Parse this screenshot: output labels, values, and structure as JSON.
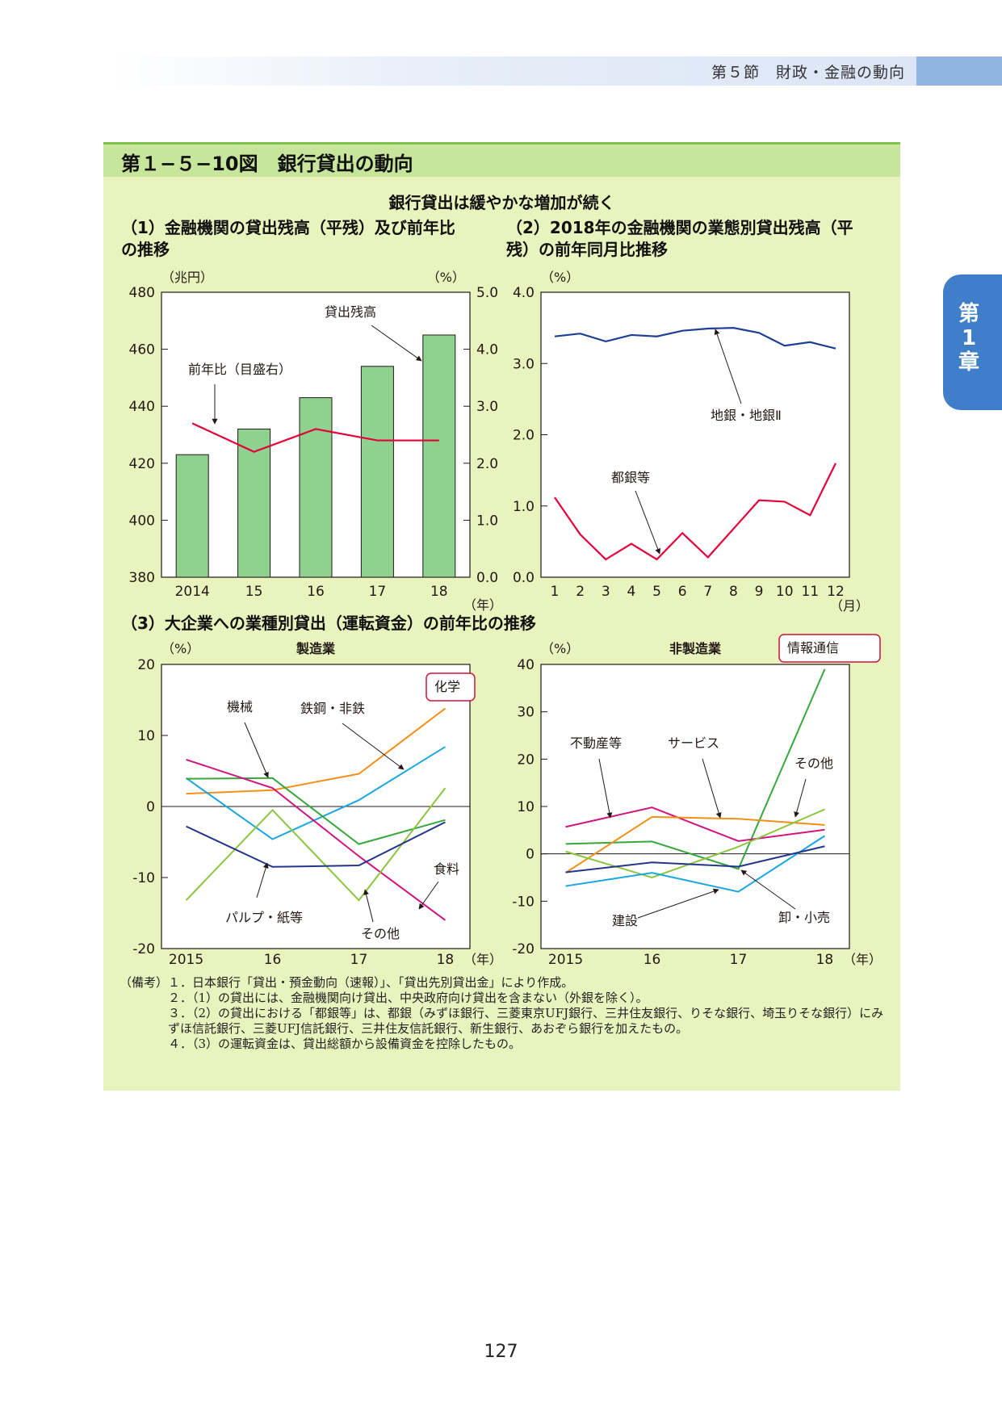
{
  "header": {
    "section": "第５節　財政・金融の動向",
    "side_tab": "第1章"
  },
  "figure": {
    "title": "第１−５−10図　銀行貸出の動向",
    "subtitle": "銀行貸出は緩やかな増加が続く"
  },
  "sections": {
    "s1": "（1）金融機関の貸出残高（平残）及び前年比の推移",
    "s2": "（2）2018年の金融機関の業態別貸出残高（平残）の前年同月比推移",
    "s3": "（3）大企業への業種別貸出（運転資金）の前年比の推移"
  },
  "chart_data": [
    {
      "id": "c1",
      "type": "bar",
      "categories": [
        "2014",
        "15",
        "16",
        "17",
        "18"
      ],
      "x_unit": "（年）",
      "y_left_unit": "（兆円）",
      "y_right_unit": "（%）",
      "ylim_left": [
        380,
        480
      ],
      "yticks_left": [
        "380",
        "400",
        "420",
        "440",
        "460",
        "480"
      ],
      "ylim_right": [
        0,
        5
      ],
      "yticks_right": [
        "0.0",
        "1.0",
        "2.0",
        "3.0",
        "4.0",
        "5.0"
      ],
      "series": [
        {
          "name": "貸出残高",
          "type": "bar",
          "axis": "left",
          "values": [
            423,
            432,
            443,
            454,
            465
          ],
          "color": "#8fd18f"
        },
        {
          "name": "前年比（目盛右）",
          "type": "line",
          "axis": "right",
          "values": [
            2.7,
            2.2,
            2.6,
            2.4,
            2.4
          ],
          "color": "#e4003a"
        }
      ]
    },
    {
      "id": "c2",
      "type": "line",
      "x": [
        "1",
        "2",
        "3",
        "4",
        "5",
        "6",
        "7",
        "8",
        "9",
        "10",
        "11",
        "12"
      ],
      "x_unit": "（月）",
      "y_unit": "（%）",
      "ylim": [
        0,
        4
      ],
      "yticks": [
        "0.0",
        "1.0",
        "2.0",
        "3.0",
        "4.0"
      ],
      "series": [
        {
          "name": "地銀・地銀Ⅱ",
          "values": [
            3.38,
            3.42,
            3.31,
            3.4,
            3.38,
            3.46,
            3.49,
            3.5,
            3.43,
            3.25,
            3.3,
            3.21
          ],
          "color": "#1d3f94"
        },
        {
          "name": "都銀等",
          "values": [
            1.12,
            0.6,
            0.25,
            0.47,
            0.25,
            0.62,
            0.28,
            0.68,
            1.08,
            1.06,
            0.87,
            1.6
          ],
          "color": "#e4003a"
        }
      ]
    },
    {
      "id": "c3",
      "title": "製造業",
      "type": "line",
      "x": [
        "2015",
        "16",
        "17",
        "18"
      ],
      "x_unit": "（年）",
      "y_unit": "（%）",
      "ylim": [
        -20,
        20
      ],
      "yticks": [
        "-20",
        "-10",
        "0",
        "10",
        "20"
      ],
      "series": [
        {
          "name": "化学",
          "values": [
            1.8,
            2.3,
            4.6,
            13.8
          ],
          "color": "#f39019"
        },
        {
          "name": "鉄鋼・非鉄",
          "values": [
            4.0,
            -4.6,
            0.9,
            8.4
          ],
          "color": "#1aa6e0"
        },
        {
          "name": "機械",
          "values": [
            3.9,
            4.0,
            -5.3,
            -1.9
          ],
          "color": "#36a83c"
        },
        {
          "name": "食料",
          "values": [
            6.6,
            2.6,
            -7.0,
            -16.0
          ],
          "color": "#d0137f"
        },
        {
          "name": "その他",
          "values": [
            -13.2,
            -0.5,
            -13.2,
            2.6
          ],
          "color": "#8cc63f"
        },
        {
          "name": "パルプ・紙等",
          "values": [
            -2.8,
            -8.5,
            -8.3,
            -2.2
          ],
          "color": "#24358c"
        }
      ]
    },
    {
      "id": "c4",
      "title": "非製造業",
      "type": "line",
      "x": [
        "2015",
        "16",
        "17",
        "18"
      ],
      "x_unit": "（年）",
      "y_unit": "（%）",
      "ylim": [
        -20,
        40
      ],
      "yticks": [
        "-20",
        "-10",
        "0",
        "10",
        "20",
        "30",
        "40"
      ],
      "series": [
        {
          "name": "情報通信",
          "values": [
            2.1,
            2.6,
            -3.2,
            39.0
          ],
          "color": "#36a83c"
        },
        {
          "name": "不動産等",
          "values": [
            5.7,
            9.8,
            2.7,
            5.1
          ],
          "color": "#d0137f"
        },
        {
          "name": "サービス",
          "values": [
            -4.0,
            7.8,
            7.4,
            6.1
          ],
          "color": "#f39019"
        },
        {
          "name": "その他",
          "values": [
            0.5,
            -5.0,
            1.5,
            9.4
          ],
          "color": "#8cc63f"
        },
        {
          "name": "建設",
          "values": [
            -6.8,
            -4.0,
            -8.0,
            3.8
          ],
          "color": "#1aa6e0"
        },
        {
          "name": "卸・小売",
          "values": [
            -3.9,
            -1.8,
            -2.7,
            1.6
          ],
          "color": "#24358c"
        }
      ]
    }
  ],
  "notes": {
    "label": "（備考）",
    "items": [
      "１．日本銀行「貸出・預金動向（速報）」、「貸出先別貸出金」により作成。",
      "２．（1）の貸出には、金融機関向け貸出、中央政府向け貸出を含まない（外銀を除く）。",
      "３．（2）の貸出における「都銀等」は、都銀（みずほ銀行、三菱東京UFJ銀行、三井住友銀行、りそな銀行、埼玉りそな銀行）にみずほ信託銀行、三菱UFJ信託銀行、三井住友信託銀行、新生銀行、あおぞら銀行を加えたもの。",
      "４．（3）の運転資金は、貸出総額から設備資金を控除したもの。"
    ]
  },
  "page_number": "127"
}
